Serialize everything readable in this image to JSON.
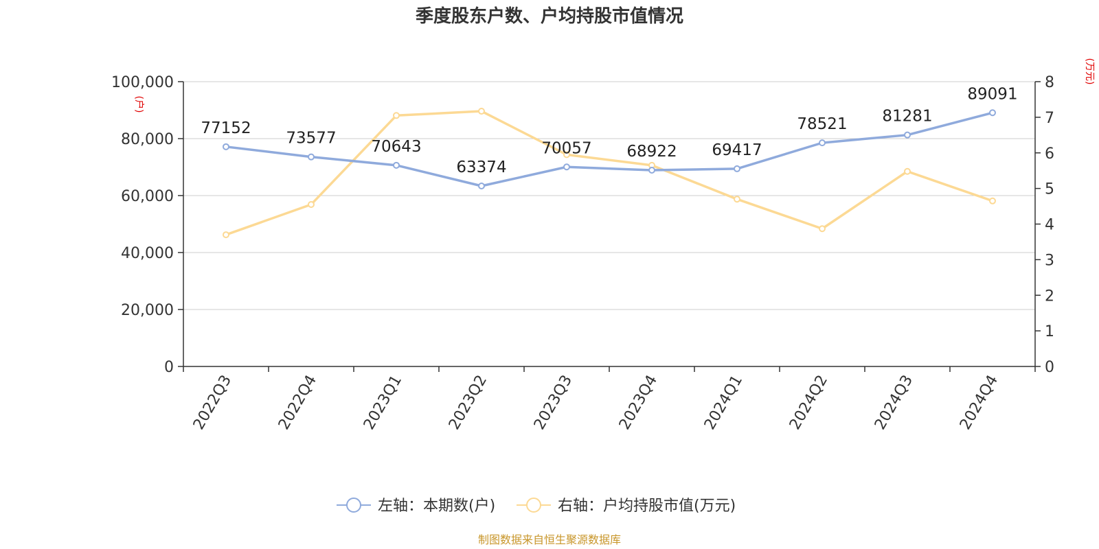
{
  "chart_data": {
    "type": "line",
    "title": "季度股东户数、户均持股市值情况",
    "categories": [
      "2022Q3",
      "2022Q4",
      "2023Q1",
      "2023Q2",
      "2023Q3",
      "2023Q4",
      "2024Q1",
      "2024Q2",
      "2024Q3",
      "2024Q4"
    ],
    "series": [
      {
        "name": "左轴：本期数(户)",
        "axis": "left",
        "color": "#8faadc",
        "values": [
          77152,
          73577,
          70643,
          63374,
          70057,
          68922,
          69417,
          78521,
          81281,
          89091
        ],
        "data_labels": [
          "77152",
          "73577",
          "70643",
          "63374",
          "70057",
          "68922",
          "69417",
          "78521",
          "81281",
          "89091"
        ]
      },
      {
        "name": "右轴：户均持股市值(万元)",
        "axis": "right",
        "color": "#fcd994",
        "values": [
          3.7,
          4.55,
          7.05,
          7.17,
          5.95,
          5.65,
          4.7,
          3.87,
          5.48,
          4.65
        ]
      }
    ],
    "y_left": {
      "unit": "(户)",
      "ylim": [
        0,
        100000
      ],
      "ticks": [
        0,
        20000,
        40000,
        60000,
        80000,
        100000
      ],
      "tick_labels": [
        "0",
        "20,000",
        "40,000",
        "60,000",
        "80,000",
        "100,000"
      ]
    },
    "y_right": {
      "unit": "(万元)",
      "ylim": [
        0,
        8
      ],
      "ticks": [
        0,
        1,
        2,
        3,
        4,
        5,
        6,
        7,
        8
      ],
      "tick_labels": [
        "0",
        "1",
        "2",
        "3",
        "4",
        "5",
        "6",
        "7",
        "8"
      ]
    },
    "grid": true,
    "legend_position": "bottom",
    "source": "制图数据来自恒生聚源数据库"
  }
}
